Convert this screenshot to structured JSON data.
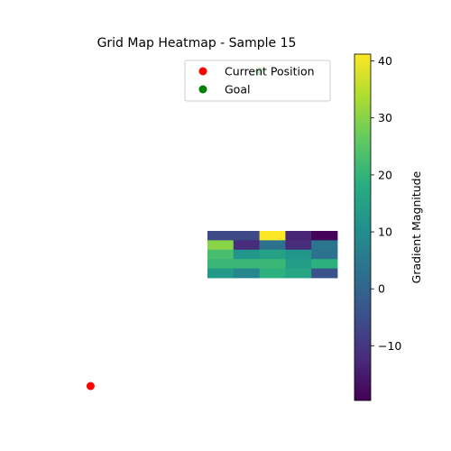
{
  "chart_data": {
    "type": "heatmap",
    "title": "Grid Map Heatmap - Sample 15",
    "colorbar": {
      "label": "Gradient Magnitude",
      "range": [
        -19.6,
        41.2
      ],
      "ticks": [
        -10,
        0,
        10,
        20,
        30,
        40
      ],
      "colormap": "viridis"
    },
    "grid_extent": {
      "cols": 10,
      "rows": 10
    },
    "heatmap_region": {
      "col_start": 5,
      "row_start": 5,
      "cols": 5,
      "rows": 5
    },
    "cells": [
      [
        -6,
        -6,
        41,
        -13,
        -19
      ],
      [
        30,
        -12,
        3,
        -12,
        4
      ],
      [
        23,
        12,
        15,
        12,
        3
      ],
      [
        21,
        21,
        21,
        14,
        19
      ],
      [
        13,
        8,
        19,
        16,
        -4
      ]
    ],
    "markers": [
      {
        "name": "Current Position",
        "col": 0.5,
        "row": 9.5,
        "color": "#ff0000"
      },
      {
        "name": "Goal",
        "col": 7.0,
        "row": 0.5,
        "color": "#008000"
      }
    ],
    "legend": {
      "position": "upper right",
      "entries": [
        {
          "label": "Current Position",
          "color": "#ff0000"
        },
        {
          "label": "Goal",
          "color": "#008000"
        }
      ]
    }
  }
}
